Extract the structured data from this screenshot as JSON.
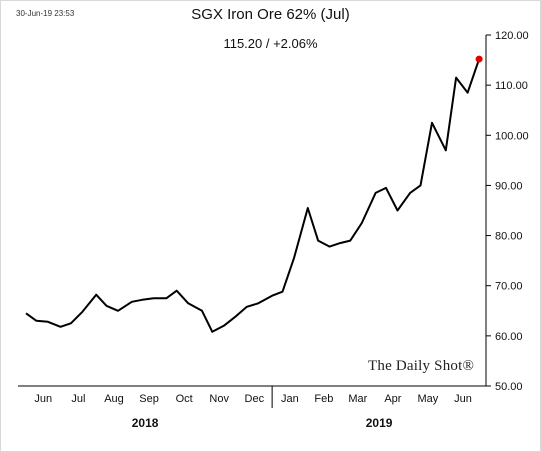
{
  "timestamp": "30-Jun-19 23:53",
  "brand": "The Daily Shot®",
  "chart_data": {
    "type": "line",
    "title": "SGX Iron Ore 62% (Jul)",
    "subtitle": "115.20  /  +2.06%",
    "xlabel": "",
    "ylabel": "",
    "ylim": [
      50,
      120
    ],
    "y_ticks": [
      "50.00",
      "60.00",
      "70.00",
      "80.00",
      "90.00",
      "100.00",
      "110.00",
      "120.00"
    ],
    "x_ticks": [
      "Jun",
      "Jul",
      "Aug",
      "Sep",
      "Oct",
      "Nov",
      "Dec",
      "Jan",
      "Feb",
      "Mar",
      "Apr",
      "May",
      "Jun"
    ],
    "years": [
      "2018",
      "2019"
    ],
    "grid": false,
    "line_color": "#000000",
    "marker_color": "#e00000",
    "x": [
      "2018-06-01",
      "2018-06-10",
      "2018-06-20",
      "2018-07-01",
      "2018-07-10",
      "2018-07-20",
      "2018-08-01",
      "2018-08-10",
      "2018-08-20",
      "2018-09-01",
      "2018-09-10",
      "2018-09-20",
      "2018-10-01",
      "2018-10-10",
      "2018-10-20",
      "2018-11-01",
      "2018-11-10",
      "2018-11-20",
      "2018-12-01",
      "2018-12-10",
      "2018-12-20",
      "2019-01-01",
      "2019-01-10",
      "2019-01-20",
      "2019-02-01",
      "2019-02-10",
      "2019-02-20",
      "2019-03-01",
      "2019-03-10",
      "2019-03-20",
      "2019-04-01",
      "2019-04-10",
      "2019-04-20",
      "2019-05-01",
      "2019-05-10",
      "2019-05-20",
      "2019-06-01",
      "2019-06-10",
      "2019-06-20",
      "2019-06-30"
    ],
    "values": [
      64.5,
      63.0,
      62.8,
      61.8,
      62.5,
      64.8,
      68.2,
      66.0,
      65.0,
      66.8,
      67.2,
      67.5,
      67.5,
      69.0,
      66.5,
      65.0,
      60.8,
      62.0,
      64.0,
      65.8,
      66.5,
      68.0,
      68.8,
      75.5,
      85.5,
      79.0,
      77.8,
      78.5,
      79.0,
      82.5,
      88.5,
      89.5,
      85.0,
      88.5,
      90.0,
      102.5,
      97.0,
      111.5,
      108.5,
      115.2
    ]
  }
}
